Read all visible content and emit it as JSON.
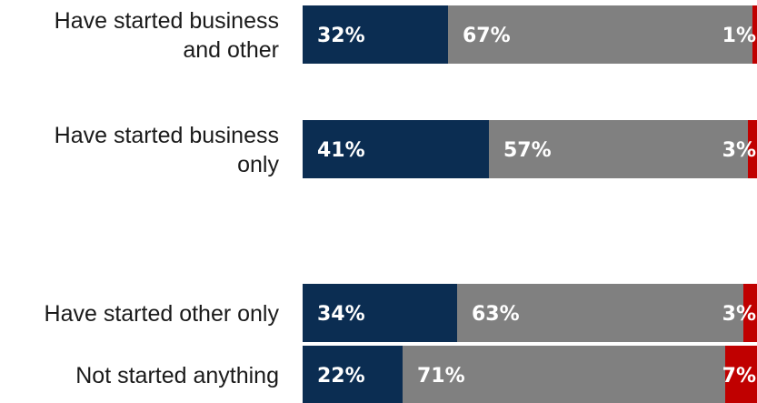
{
  "chart_data": {
    "type": "bar",
    "orientation": "horizontal",
    "stacked": true,
    "categories": [
      [
        "Have started business",
        "and other"
      ],
      [
        "Have started business",
        "only"
      ],
      [
        "Have started other only"
      ],
      [
        "Not started anything"
      ]
    ],
    "series": [
      {
        "values": [
          32,
          41,
          34,
          22
        ],
        "labels": [
          "32%",
          "41%",
          "34%",
          "22%"
        ],
        "color": "#0b2d52"
      },
      {
        "values": [
          67,
          57,
          63,
          71
        ],
        "labels": [
          "67%",
          "57%",
          "63%",
          "71%"
        ],
        "color": "#808080"
      },
      {
        "values": [
          1,
          3,
          3,
          7
        ],
        "labels": [
          "1%",
          "3%",
          "3%",
          "7%"
        ],
        "color": "#c00000"
      }
    ],
    "xlim": [
      0,
      100
    ],
    "grid": false,
    "legend": "none"
  }
}
